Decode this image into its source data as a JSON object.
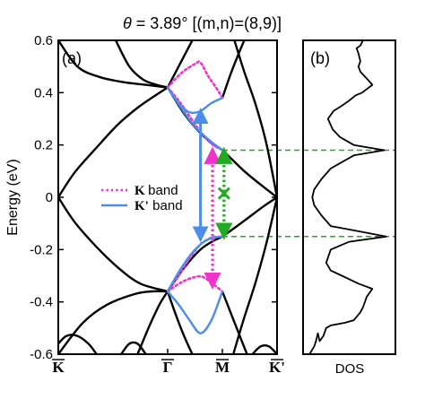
{
  "title_prefix": "θ",
  "title_rest": " = 3.89° [(m,n)=(8,9)]",
  "panels": {
    "a": "(a)",
    "b": "(b)"
  },
  "colors": {
    "axis": "#000000",
    "K_band": "#ee33cc",
    "Kp_band": "#4a8ee8",
    "green": "#22aa22",
    "black_band": "#000000"
  },
  "chart_data": [
    {
      "panel": "(a)",
      "type": "line",
      "ylabel": "Energy (eV)",
      "ylim": [
        -0.6,
        0.6
      ],
      "yticks": [
        -0.6,
        -0.4,
        -0.2,
        0,
        0.2,
        0.4,
        0.6
      ],
      "ytick_labels": [
        "-0.6",
        "-0.4",
        "-0.2",
        "0",
        "0.2",
        "0.4",
        "0.6"
      ],
      "xlim": [
        0,
        4
      ],
      "xticks": [
        0,
        2,
        3,
        4
      ],
      "xtick_labels": [
        "K",
        "Γ",
        "M",
        "K'"
      ],
      "legend": {
        "placement": "center-left",
        "entries": [
          {
            "key": "K",
            "suffix": " band",
            "style": "dotted",
            "color": "#ee33cc"
          },
          {
            "key": "K'",
            "suffix": " band",
            "style": "solid",
            "color": "#4a8ee8"
          }
        ]
      },
      "series": [
        {
          "group": "black",
          "points": [
            [
              0,
              0
            ],
            [
              0.3,
              0.095
            ],
            [
              0.7,
              0.19
            ],
            [
              1.1,
              0.28
            ],
            [
              1.5,
              0.35
            ],
            [
              2,
              0.42
            ]
          ]
        },
        {
          "group": "black",
          "points": [
            [
              0,
              0
            ],
            [
              0.3,
              -0.095
            ],
            [
              0.7,
              -0.19
            ],
            [
              1.1,
              -0.27
            ],
            [
              1.5,
              -0.33
            ],
            [
              2,
              -0.36
            ]
          ]
        },
        {
          "group": "black",
          "points": [
            [
              2,
              0.42
            ],
            [
              2.3,
              0.32
            ],
            [
              2.6,
              0.245
            ],
            [
              2.85,
              0.2
            ],
            [
              3,
              0.18
            ],
            [
              3.4,
              0.1
            ],
            [
              3.75,
              0.04
            ],
            [
              4,
              0
            ]
          ]
        },
        {
          "group": "black",
          "points": [
            [
              2,
              -0.36
            ],
            [
              2.3,
              -0.27
            ],
            [
              2.6,
              -0.2
            ],
            [
              2.85,
              -0.165
            ],
            [
              3,
              -0.15
            ],
            [
              3.4,
              -0.09
            ],
            [
              3.75,
              -0.035
            ],
            [
              4,
              0
            ]
          ]
        },
        {
          "group": "black",
          "points": [
            [
              0,
              0.6
            ],
            [
              0.35,
              0.5
            ],
            [
              0.75,
              0.46
            ],
            [
              1.2,
              0.44
            ],
            [
              1.6,
              0.43
            ],
            [
              2,
              0.42
            ]
          ]
        },
        {
          "group": "black",
          "points": [
            [
              2,
              0.42
            ],
            [
              2.2,
              0.5
            ],
            [
              2.45,
              0.6
            ]
          ]
        },
        {
          "group": "black",
          "points": [
            [
              1.05,
              0.6
            ],
            [
              1.3,
              0.5
            ],
            [
              1.55,
              0.45
            ],
            [
              1.8,
              0.43
            ],
            [
              2,
              0.42
            ]
          ]
        },
        {
          "group": "black",
          "points": [
            [
              3,
              0.38
            ],
            [
              3.15,
              0.47
            ],
            [
              3.28,
              0.54
            ],
            [
              3.4,
              0.6
            ]
          ]
        },
        {
          "group": "black",
          "points": [
            [
              3.22,
              0.6
            ],
            [
              3.4,
              0.48
            ],
            [
              3.6,
              0.36
            ],
            [
              3.8,
              0.21
            ],
            [
              4,
              0
            ]
          ]
        },
        {
          "group": "black",
          "points": [
            [
              0,
              -0.6
            ],
            [
              0.45,
              -0.48
            ],
            [
              0.9,
              -0.41
            ],
            [
              1.4,
              -0.37
            ],
            [
              1.7,
              -0.36
            ],
            [
              2,
              -0.36
            ]
          ]
        },
        {
          "group": "black",
          "points": [
            [
              2,
              -0.36
            ],
            [
              2.15,
              -0.45
            ],
            [
              2.3,
              -0.53
            ],
            [
              2.45,
              -0.6
            ]
          ]
        },
        {
          "group": "black",
          "points": [
            [
              1.45,
              -0.6
            ],
            [
              1.65,
              -0.5
            ],
            [
              1.85,
              -0.41
            ],
            [
              2,
              -0.36
            ]
          ]
        },
        {
          "group": "black",
          "points": [
            [
              3,
              -0.36
            ],
            [
              3.15,
              -0.44
            ],
            [
              3.3,
              -0.52
            ],
            [
              3.45,
              -0.6
            ]
          ]
        },
        {
          "group": "black",
          "points": [
            [
              3.2,
              -0.6
            ],
            [
              3.4,
              -0.46
            ],
            [
              3.6,
              -0.33
            ],
            [
              3.8,
              -0.18
            ],
            [
              4,
              0
            ]
          ]
        },
        {
          "group": "black",
          "points": [
            [
              0,
              -0.56
            ],
            [
              0.15,
              -0.53
            ],
            [
              0.35,
              -0.53
            ],
            [
              0.55,
              -0.56
            ],
            [
              0.7,
              -0.6
            ]
          ]
        },
        {
          "group": "black",
          "points": [
            [
              1.15,
              -0.6
            ],
            [
              1.3,
              -0.56
            ],
            [
              1.45,
              -0.56
            ],
            [
              1.6,
              -0.6
            ]
          ]
        },
        {
          "group": "black",
          "points": [
            [
              3.55,
              -0.6
            ],
            [
              3.7,
              -0.57
            ],
            [
              3.85,
              -0.57
            ],
            [
              4,
              -0.6
            ]
          ]
        },
        {
          "group": "K band",
          "points": [
            [
              2,
              0.42
            ],
            [
              2.25,
              0.475
            ],
            [
              2.5,
              0.51
            ],
            [
              2.6,
              0.515
            ],
            [
              2.75,
              0.46
            ],
            [
              2.9,
              0.415
            ],
            [
              3,
              0.38
            ]
          ]
        },
        {
          "group": "K band",
          "points": [
            [
              2,
              0.42
            ],
            [
              2.2,
              0.37
            ],
            [
              2.4,
              0.31
            ],
            [
              2.6,
              0.25
            ],
            [
              2.8,
              0.205
            ],
            [
              3,
              0.18
            ]
          ]
        },
        {
          "group": "K band",
          "points": [
            [
              2,
              -0.36
            ],
            [
              2.25,
              -0.325
            ],
            [
              2.5,
              -0.305
            ],
            [
              2.65,
              -0.305
            ],
            [
              2.85,
              -0.335
            ],
            [
              3,
              -0.36
            ]
          ]
        },
        {
          "group": "K band",
          "points": [
            [
              2,
              -0.36
            ],
            [
              2.2,
              -0.3
            ],
            [
              2.4,
              -0.235
            ],
            [
              2.6,
              -0.18
            ],
            [
              2.8,
              -0.155
            ],
            [
              3,
              -0.15
            ]
          ]
        },
        {
          "group": "K' band",
          "points": [
            [
              2,
              0.42
            ],
            [
              2.2,
              0.36
            ],
            [
              2.4,
              0.325
            ],
            [
              2.6,
              0.33
            ],
            [
              2.8,
              0.36
            ],
            [
              3,
              0.38
            ]
          ]
        },
        {
          "group": "K' band",
          "points": [
            [
              2,
              0.42
            ],
            [
              2.25,
              0.34
            ],
            [
              2.5,
              0.27
            ],
            [
              2.75,
              0.22
            ],
            [
              3,
              0.18
            ]
          ]
        },
        {
          "group": "K' band",
          "points": [
            [
              2,
              -0.36
            ],
            [
              2.2,
              -0.41
            ],
            [
              2.4,
              -0.47
            ],
            [
              2.6,
              -0.52
            ],
            [
              2.8,
              -0.47
            ],
            [
              3,
              -0.36
            ]
          ]
        },
        {
          "group": "K' band",
          "points": [
            [
              2,
              -0.36
            ],
            [
              2.25,
              -0.27
            ],
            [
              2.5,
              -0.2
            ],
            [
              2.75,
              -0.16
            ],
            [
              3,
              -0.15
            ]
          ]
        }
      ],
      "arrows": [
        {
          "color": "#4a8ee8",
          "style": "solid",
          "x": 2.6,
          "from": 0.33,
          "to": -0.16
        },
        {
          "color": "#ee33cc",
          "style": "dotted",
          "x": 2.82,
          "from": 0.18,
          "to": -0.34
        },
        {
          "color": "#22aa22",
          "style": "dotted",
          "x": 3.03,
          "from": 0.18,
          "to": -0.15
        }
      ],
      "markers": [
        {
          "type": "x",
          "color": "#22aa22",
          "x": 3.03,
          "y": 0.015
        }
      ],
      "guide_lines": [
        {
          "color": "#22aa22",
          "style": "dashed",
          "y": 0.18,
          "from_x": 3,
          "to": "panel (b)"
        },
        {
          "color": "#22aa22",
          "style": "dashed",
          "y": -0.15,
          "from_x": 3,
          "to": "panel (b)"
        }
      ]
    },
    {
      "panel": "(b)",
      "type": "line",
      "xlabel": "DOS",
      "ylim": [
        -0.6,
        0.6
      ],
      "grid": false,
      "series": [
        {
          "name": "",
          "points": [
            [
              0.07,
              -0.6
            ],
            [
              0.12,
              -0.57
            ],
            [
              0.14,
              -0.55
            ],
            [
              0.16,
              -0.52
            ],
            [
              0.18,
              -0.55
            ],
            [
              0.22,
              -0.53
            ],
            [
              0.25,
              -0.5
            ],
            [
              0.3,
              -0.49
            ],
            [
              0.45,
              -0.48
            ],
            [
              0.55,
              -0.47
            ],
            [
              0.62,
              -0.44
            ],
            [
              0.65,
              -0.42
            ],
            [
              0.69,
              -0.38
            ],
            [
              0.75,
              -0.35
            ],
            [
              0.6,
              -0.33
            ],
            [
              0.42,
              -0.3
            ],
            [
              0.3,
              -0.28
            ],
            [
              0.25,
              -0.25
            ],
            [
              0.3,
              -0.2
            ],
            [
              0.5,
              -0.17
            ],
            [
              0.9,
              -0.15
            ],
            [
              0.6,
              -0.13
            ],
            [
              0.3,
              -0.11
            ],
            [
              0.2,
              -0.07
            ],
            [
              0.12,
              -0.03
            ],
            [
              0.1,
              0
            ],
            [
              0.12,
              0.03
            ],
            [
              0.2,
              0.07
            ],
            [
              0.3,
              0.11
            ],
            [
              0.55,
              0.16
            ],
            [
              0.88,
              0.18
            ],
            [
              0.55,
              0.2
            ],
            [
              0.4,
              0.23
            ],
            [
              0.32,
              0.26
            ],
            [
              0.27,
              0.3
            ],
            [
              0.33,
              0.33
            ],
            [
              0.42,
              0.35
            ],
            [
              0.5,
              0.37
            ],
            [
              0.57,
              0.39
            ],
            [
              0.64,
              0.4
            ],
            [
              0.75,
              0.43
            ],
            [
              0.7,
              0.45
            ],
            [
              0.62,
              0.48
            ],
            [
              0.6,
              0.5
            ],
            [
              0.62,
              0.52
            ],
            [
              0.6,
              0.55
            ],
            [
              0.58,
              0.57
            ],
            [
              0.62,
              0.58
            ],
            [
              0.65,
              0.6
            ]
          ]
        }
      ]
    }
  ]
}
